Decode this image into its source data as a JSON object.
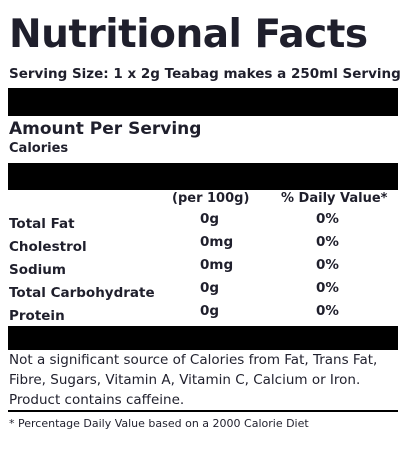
{
  "title": "Nutritional Facts",
  "serving_size": "Serving Size: 1 x 2g Teabag makes a 250ml Serving",
  "amount_per_serving": "Amount Per Serving",
  "calories_label": "Calories",
  "columns": {
    "per_100g": "(per 100g)",
    "daily_value": "% Daily Value*"
  },
  "nutrients": [
    {
      "name": "Total Fat",
      "per_100g": "0g",
      "daily_value": "0%"
    },
    {
      "name": "Cholestrol",
      "per_100g": "0mg",
      "daily_value": "0%"
    },
    {
      "name": "Sodium",
      "per_100g": "0mg",
      "daily_value": "0%"
    },
    {
      "name": "Total Carbohydrate",
      "per_100g": "0g",
      "daily_value": "0%"
    },
    {
      "name": "Protein",
      "per_100g": "0g",
      "daily_value": "0%"
    }
  ],
  "note_lines": [
    "Not a significant source of Calories from Fat, Trans Fat,",
    "Fibre, Sugars, Vitamin A, Vitamin C, Calcium or Iron.",
    "Product contains caffeine."
  ],
  "footnote": "* Percentage Daily Value based on a 2000 Calorie Diet",
  "colors": {
    "text": "#1f1f2c",
    "bars": "#000000",
    "background": "#ffffff"
  }
}
